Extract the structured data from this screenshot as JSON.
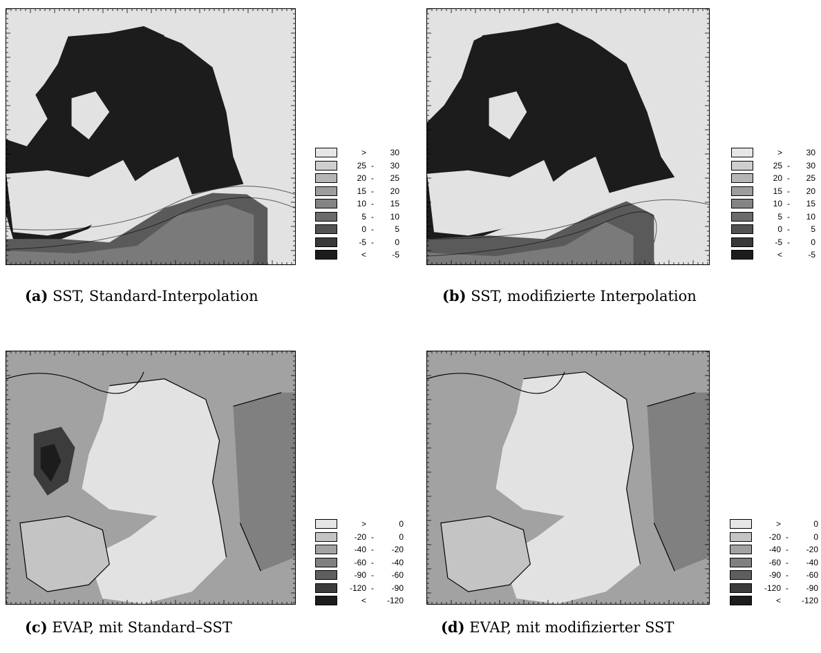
{
  "panels": [
    {
      "id": "a",
      "caption_letter": "(a)",
      "caption_text": "SST, Standard-Interpolation",
      "legend": [
        {
          "lo": ">",
          "hi": "30",
          "color": "#e6e6e6"
        },
        {
          "lo": "25",
          "hi": "30",
          "color": "#cfcfcf"
        },
        {
          "lo": "20",
          "hi": "25",
          "color": "#b6b6b6"
        },
        {
          "lo": "15",
          "hi": "20",
          "color": "#9d9d9d"
        },
        {
          "lo": "10",
          "hi": "15",
          "color": "#848484"
        },
        {
          "lo": "5",
          "hi": "10",
          "color": "#6b6b6b"
        },
        {
          "lo": "0",
          "hi": "5",
          "color": "#525252"
        },
        {
          "lo": "-5",
          "hi": "0",
          "color": "#393939"
        },
        {
          "lo": "<",
          "hi": "-5",
          "color": "#1c1c1c"
        }
      ]
    },
    {
      "id": "b",
      "caption_letter": "(b)",
      "caption_text": "SST, modifizierte Interpolation",
      "legend": [
        {
          "lo": ">",
          "hi": "30",
          "color": "#e6e6e6"
        },
        {
          "lo": "25",
          "hi": "30",
          "color": "#cfcfcf"
        },
        {
          "lo": "20",
          "hi": "25",
          "color": "#b6b6b6"
        },
        {
          "lo": "15",
          "hi": "20",
          "color": "#9d9d9d"
        },
        {
          "lo": "10",
          "hi": "15",
          "color": "#848484"
        },
        {
          "lo": "5",
          "hi": "10",
          "color": "#6b6b6b"
        },
        {
          "lo": "0",
          "hi": "5",
          "color": "#525252"
        },
        {
          "lo": "-5",
          "hi": "0",
          "color": "#393939"
        },
        {
          "lo": "<",
          "hi": "-5",
          "color": "#1c1c1c"
        }
      ]
    },
    {
      "id": "c",
      "caption_letter": "(c)",
      "caption_text": "EVAP, mit Standard–SST",
      "legend": [
        {
          "lo": ">",
          "hi": "0",
          "color": "#e6e6e6"
        },
        {
          "lo": "-20",
          "hi": "0",
          "color": "#c4c4c4"
        },
        {
          "lo": "-40",
          "hi": "-20",
          "color": "#a2a2a2"
        },
        {
          "lo": "-60",
          "hi": "-40",
          "color": "#808080"
        },
        {
          "lo": "-90",
          "hi": "-60",
          "color": "#5e5e5e"
        },
        {
          "lo": "-120",
          "hi": "-90",
          "color": "#3c3c3c"
        },
        {
          "lo": "<",
          "hi": "-120",
          "color": "#1c1c1c"
        }
      ]
    },
    {
      "id": "d",
      "caption_letter": "(d)",
      "caption_text": "EVAP, mit modifizierter SST",
      "legend": [
        {
          "lo": ">",
          "hi": "0",
          "color": "#e6e6e6"
        },
        {
          "lo": "-20",
          "hi": "0",
          "color": "#c4c4c4"
        },
        {
          "lo": "-40",
          "hi": "-20",
          "color": "#a2a2a2"
        },
        {
          "lo": "-60",
          "hi": "-40",
          "color": "#808080"
        },
        {
          "lo": "-90",
          "hi": "-60",
          "color": "#5e5e5e"
        },
        {
          "lo": "-120",
          "hi": "-90",
          "color": "#3c3c3c"
        },
        {
          "lo": "<",
          "hi": "-120",
          "color": "#1c1c1c"
        }
      ]
    }
  ]
}
